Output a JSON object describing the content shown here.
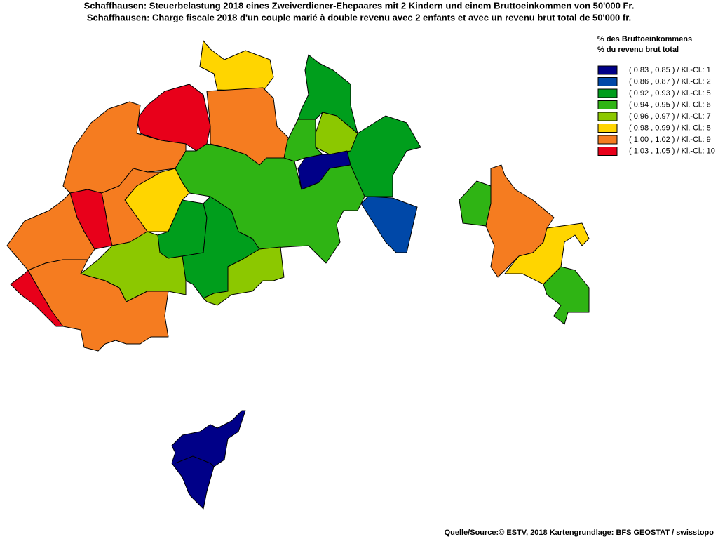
{
  "header": {
    "title_de": "Schaffhausen: Steuerbelastung 2018 eines Zweiverdiener-Ehepaares mit 2 Kindern und einem Bruttoeinkommen von 50'000 Fr.",
    "title_fr": "Schaffhausen: Charge fiscale 2018 d'un couple marié à double revenu avec 2 enfants et avec un revenu brut total de 50'000 fr."
  },
  "legend": {
    "title_de": "% des Bruttoeinkommens",
    "title_fr": "% du revenu brut total",
    "items": [
      {
        "label": "( 0.83 , 0.85 ) / Kl.-Cl.: 1",
        "color": "#000088"
      },
      {
        "label": "( 0.86 , 0.87 ) / Kl.-Cl.: 2",
        "color": "#0048a8"
      },
      {
        "label": "( 0.92 , 0.93 ) / Kl.-Cl.: 5",
        "color": "#009e1c"
      },
      {
        "label": "( 0.94 , 0.95 ) / Kl.-Cl.: 6",
        "color": "#2fb414"
      },
      {
        "label": "( 0.96 , 0.97 ) / Kl.-Cl.: 7",
        "color": "#8cc800"
      },
      {
        "label": "( 0.98 , 0.99 ) / Kl.-Cl.: 8",
        "color": "#ffd500"
      },
      {
        "label": "( 1.00 , 1.02 ) / Kl.-Cl.: 9",
        "color": "#f57c20"
      },
      {
        "label": "( 1.03 , 1.05 ) / Kl.-Cl.: 10",
        "color": "#e8001a"
      }
    ]
  },
  "footer": {
    "source": "Quelle/Source:© ESTV, 2018 Kartengrundlage: BFS GEOSTAT / swisstopo"
  }
}
